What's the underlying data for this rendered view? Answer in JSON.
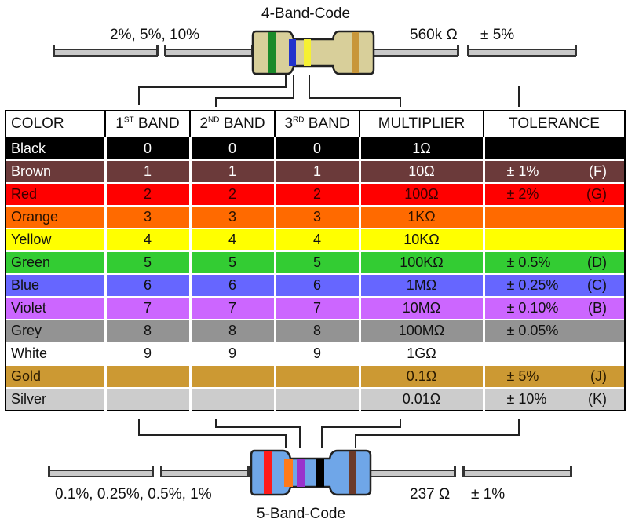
{
  "top": {
    "title": "4-Band-Code",
    "left_note": "2%, 5%, 10%",
    "right_value": "560k Ω",
    "right_tol": "± 5%",
    "resistor_body": "#d8cf9a",
    "bands": [
      "#1a8a2a",
      "#2233cc",
      "#f5f032",
      "#c8963a"
    ]
  },
  "bottom": {
    "title": "5-Band-Code",
    "left_note": "0.1%, 0.25%, 0.5%, 1%",
    "right_value": "237 Ω",
    "right_tol": "± 1%",
    "resistor_body": "#6fa6e8",
    "bands": [
      "#ff1a1a",
      "#ff7a1a",
      "#9933cc",
      "#000000",
      "#6b3a2a"
    ]
  },
  "table": {
    "headers": [
      {
        "main": "COLOR",
        "sup": "",
        "rest": ""
      },
      {
        "main": "1",
        "sup": "ST",
        "rest": " BAND"
      },
      {
        "main": "2",
        "sup": "ND",
        "rest": " BAND"
      },
      {
        "main": "3",
        "sup": "RD",
        "rest": " BAND"
      },
      {
        "main": "MULTIPLIER",
        "sup": "",
        "rest": ""
      },
      {
        "main": "TOLERANCE",
        "sup": "",
        "rest": ""
      }
    ],
    "rows": [
      {
        "name": "Black",
        "bg": "#000000",
        "fg": "#ffffff",
        "b1": "0",
        "b2": "0",
        "b3": "0",
        "mult": "1Ω",
        "tol": "",
        "code": ""
      },
      {
        "name": "Brown",
        "bg": "#6b3a3a",
        "fg": "#ffffff",
        "b1": "1",
        "b2": "1",
        "b3": "1",
        "mult": "10Ω",
        "tol": "± 1%",
        "code": "(F)"
      },
      {
        "name": "Red",
        "bg": "#ff0000",
        "fg": "#3a0000",
        "b1": "2",
        "b2": "2",
        "b3": "2",
        "mult": "100Ω",
        "tol": "± 2%",
        "code": "(G)"
      },
      {
        "name": "Orange",
        "bg": "#ff6a00",
        "fg": "#2a1200",
        "b1": "3",
        "b2": "3",
        "b3": "3",
        "mult": "1KΩ",
        "tol": "",
        "code": ""
      },
      {
        "name": "Yellow",
        "bg": "#ffff00",
        "fg": "#111111",
        "b1": "4",
        "b2": "4",
        "b3": "4",
        "mult": "10KΩ",
        "tol": "",
        "code": ""
      },
      {
        "name": "Green",
        "bg": "#33cc33",
        "fg": "#111111",
        "b1": "5",
        "b2": "5",
        "b3": "5",
        "mult": "100KΩ",
        "tol": "± 0.5%",
        "code": "(D)"
      },
      {
        "name": "Blue",
        "bg": "#6666ff",
        "fg": "#111111",
        "b1": "6",
        "b2": "6",
        "b3": "6",
        "mult": "1MΩ",
        "tol": "± 0.25%",
        "code": "(C)"
      },
      {
        "name": "Violet",
        "bg": "#cc66ff",
        "fg": "#111111",
        "b1": "7",
        "b2": "7",
        "b3": "7",
        "mult": "10MΩ",
        "tol": "± 0.10%",
        "code": "(B)"
      },
      {
        "name": "Grey",
        "bg": "#939393",
        "fg": "#111111",
        "b1": "8",
        "b2": "8",
        "b3": "8",
        "mult": "100MΩ",
        "tol": "± 0.05%",
        "code": ""
      },
      {
        "name": "White",
        "bg": "#ffffff",
        "fg": "#111111",
        "b1": "9",
        "b2": "9",
        "b3": "9",
        "mult": "1GΩ",
        "tol": "",
        "code": ""
      },
      {
        "name": "Gold",
        "bg": "#cc9933",
        "fg": "#2a1a00",
        "b1": "",
        "b2": "",
        "b3": "",
        "mult": "0.1Ω",
        "tol": "± 5%",
        "code": "(J)"
      },
      {
        "name": "Silver",
        "bg": "#cccccc",
        "fg": "#111111",
        "b1": "",
        "b2": "",
        "b3": "",
        "mult": "0.01Ω",
        "tol": "± 10%",
        "code": "(K)"
      }
    ]
  }
}
